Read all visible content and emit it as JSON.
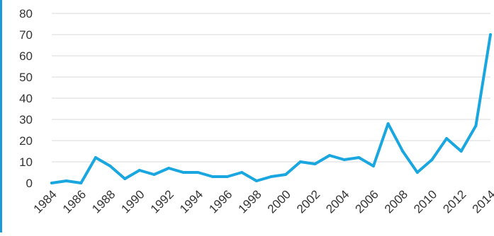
{
  "colors": {
    "line": "#1aa7e0",
    "accent_bar": "#1a9ad6",
    "grid": "#d9d9d9",
    "text": "#333333",
    "background": "#ffffff"
  },
  "chart_data": {
    "type": "line",
    "title": "",
    "xlabel": "",
    "ylabel": "",
    "ylim": [
      0,
      80
    ],
    "y_ticks": [
      0,
      10,
      20,
      30,
      40,
      50,
      60,
      70,
      80
    ],
    "x_tick_labels": [
      "1984",
      "1986",
      "1988",
      "1990",
      "1992",
      "1994",
      "1996",
      "1998",
      "2000",
      "2002",
      "2004",
      "2006",
      "2008",
      "2010",
      "2012",
      "2014"
    ],
    "grid": true,
    "legend": "none",
    "x": [
      1984,
      1985,
      1986,
      1987,
      1988,
      1989,
      1990,
      1991,
      1992,
      1993,
      1994,
      1995,
      1996,
      1997,
      1998,
      1999,
      2000,
      2001,
      2002,
      2003,
      2004,
      2005,
      2006,
      2007,
      2008,
      2009,
      2010,
      2011,
      2012,
      2013,
      2014
    ],
    "series": [
      {
        "values": [
          0,
          1,
          0,
          12,
          8,
          2,
          6,
          4,
          7,
          5,
          5,
          3,
          3,
          5,
          1,
          3,
          4,
          10,
          9,
          13,
          11,
          12,
          8,
          28,
          15,
          5,
          11,
          21,
          15,
          27,
          70
        ]
      }
    ]
  }
}
